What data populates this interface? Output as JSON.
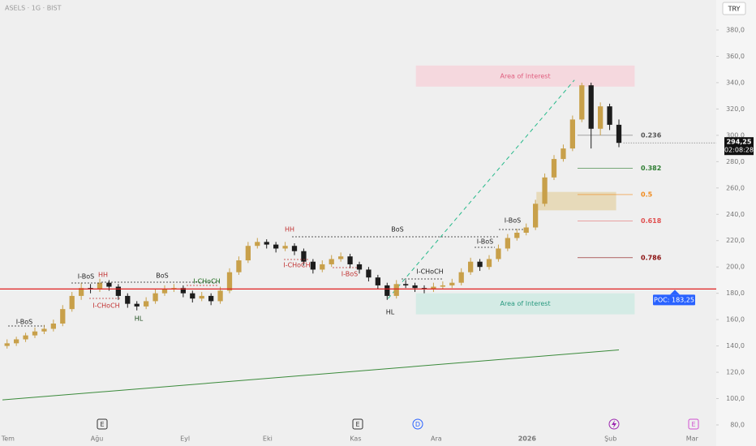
{
  "header": {
    "symbol": "ASELS · 1G · BIST",
    "currency": "TRY"
  },
  "chart_data": {
    "type": "candlestick",
    "up_color": "#c8a04a",
    "down_color": "#1c1c1c",
    "open": [
      140,
      142,
      145,
      148,
      151,
      153,
      157,
      168,
      178,
      184,
      183,
      188,
      185,
      178,
      172,
      170,
      174,
      180,
      183,
      184,
      180,
      176,
      178,
      174,
      182,
      196,
      205,
      216,
      219,
      217,
      214,
      216,
      212,
      204,
      198,
      202,
      206,
      208,
      202,
      198,
      192,
      186,
      178,
      187,
      186,
      184,
      183,
      185,
      186,
      188,
      196,
      204,
      200,
      206,
      214,
      222,
      226,
      230,
      248,
      268,
      282,
      290,
      312,
      338,
      305,
      322,
      308
    ],
    "high": [
      145,
      147,
      150,
      154,
      156,
      160,
      171,
      181,
      188,
      187,
      191,
      190,
      187,
      180,
      174,
      177,
      183,
      186,
      187,
      186,
      182,
      181,
      180,
      185,
      199,
      208,
      219,
      222,
      221,
      219,
      219,
      218,
      214,
      206,
      205,
      209,
      211,
      210,
      204,
      200,
      194,
      188,
      190,
      190,
      188,
      186,
      188,
      189,
      191,
      199,
      207,
      206,
      209,
      217,
      225,
      229,
      233,
      251,
      271,
      285,
      293,
      315,
      340,
      340,
      325,
      324,
      312
    ],
    "low": [
      138,
      140,
      143,
      146,
      149,
      151,
      155,
      166,
      175,
      180,
      181,
      182,
      175,
      169,
      167,
      168,
      172,
      178,
      181,
      177,
      173,
      174,
      171,
      172,
      180,
      194,
      203,
      214,
      214,
      211,
      212,
      209,
      201,
      195,
      196,
      200,
      204,
      199,
      195,
      189,
      183,
      175,
      176,
      184,
      181,
      180,
      181,
      183,
      184,
      186,
      194,
      197,
      198,
      204,
      212,
      220,
      224,
      228,
      246,
      266,
      280,
      288,
      310,
      290,
      300,
      304,
      291
    ],
    "close": [
      142,
      145,
      148,
      151,
      153,
      157,
      168,
      178,
      184,
      183,
      188,
      185,
      178,
      172,
      170,
      174,
      180,
      183,
      184,
      180,
      176,
      178,
      174,
      182,
      196,
      205,
      216,
      219,
      217,
      214,
      216,
      212,
      204,
      198,
      202,
      206,
      208,
      202,
      198,
      192,
      186,
      178,
      187,
      186,
      184,
      183,
      185,
      186,
      188,
      196,
      204,
      200,
      206,
      214,
      222,
      226,
      230,
      248,
      268,
      282,
      290,
      312,
      338,
      305,
      322,
      308,
      294.25
    ],
    "last": {
      "value": 294.25,
      "label": "294,25",
      "countdown": "02:08:28"
    },
    "xlim": [
      0,
      77
    ],
    "xticks": [
      {
        "value": 0.6,
        "label": "Tem"
      },
      {
        "value": 10.2,
        "label": "Ağu"
      },
      {
        "value": 19.7,
        "label": "Eyl"
      },
      {
        "value": 28.6,
        "label": "Eki"
      },
      {
        "value": 38.1,
        "label": "Kas"
      },
      {
        "value": 46.8,
        "label": "Ara"
      },
      {
        "value": 56.6,
        "label": "2026"
      },
      {
        "value": 65.6,
        "label": "Şub"
      },
      {
        "value": 74.4,
        "label": "Mar"
      }
    ],
    "ylim": [
      80,
      380
    ],
    "yticks": [
      {
        "value": 80,
        "label": "80,0"
      },
      {
        "value": 100,
        "label": "100,0"
      },
      {
        "value": 120,
        "label": "120,0"
      },
      {
        "value": 140,
        "label": "140,0"
      },
      {
        "value": 160,
        "label": "160,0"
      },
      {
        "value": 180,
        "label": "180,0"
      },
      {
        "value": 200,
        "label": "200,0"
      },
      {
        "value": 220,
        "label": "220,0"
      },
      {
        "value": 240,
        "label": "240,0"
      },
      {
        "value": 260,
        "label": "260,0"
      },
      {
        "value": 280,
        "label": "280,0"
      },
      {
        "value": 300,
        "label": "300,0"
      },
      {
        "value": 320,
        "label": "320,0"
      },
      {
        "value": 340,
        "label": "340,0"
      },
      {
        "value": 360,
        "label": "360,0"
      },
      {
        "value": 380,
        "label": "380,0"
      }
    ],
    "poc": {
      "value": 183.25,
      "label": "POC: 183,25",
      "color": "#e02020"
    },
    "trendline": {
      "x": [
        0,
        66.5
      ],
      "values": [
        99,
        137
      ],
      "color": "#3a8a3a"
    },
    "projection": {
      "x": [
        41.6,
        61.7
      ],
      "values": [
        176,
        342
      ],
      "color": "#26b98a"
    },
    "zones": [
      {
        "label": "Area of Interest",
        "x": [
          44.6,
          68.2
        ],
        "range": [
          337,
          353
        ],
        "color": "#f6d3da",
        "text_color": "#e06080"
      },
      {
        "label": "Area of Interest",
        "x": [
          44.6,
          68.2
        ],
        "range": [
          164,
          180
        ],
        "color": "#cfeae3",
        "text_color": "#2a9a80"
      },
      {
        "x": [
          57.6,
          66.2
        ],
        "range": [
          243,
          257
        ],
        "color": "#e5d6b0"
      }
    ],
    "fib_levels": [
      {
        "ratio": 0.236,
        "price": 300,
        "color": "#555555"
      },
      {
        "ratio": 0.382,
        "price": 275,
        "color": "#2e7d32"
      },
      {
        "ratio": 0.5,
        "price": 255,
        "color": "#f08a1c"
      },
      {
        "ratio": 0.618,
        "price": 235,
        "color": "#e05050"
      },
      {
        "ratio": 0.786,
        "price": 207,
        "color": "#8b1010"
      }
    ],
    "labels": [
      "I-BoS",
      "I-BoS",
      "HH",
      "BoS",
      "I-CHoCH",
      "HL",
      "I-CHoCH",
      "HH",
      "I-CHoCH",
      "I-BoS",
      "BoS",
      "I-BoS",
      "I-BoS",
      "I-CHoCH",
      "HL"
    ],
    "events": [
      "E",
      "E",
      "D",
      "E"
    ]
  }
}
